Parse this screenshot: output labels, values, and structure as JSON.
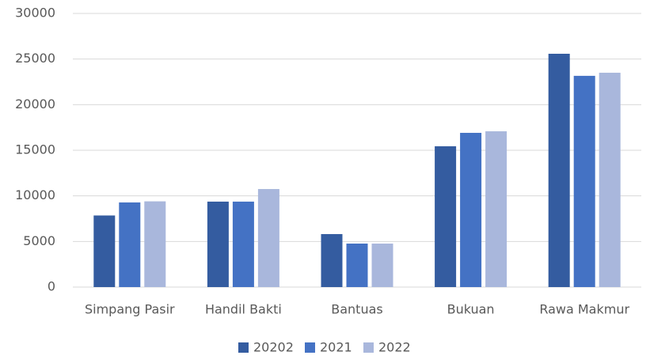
{
  "chart_data": {
    "type": "bar",
    "categories": [
      "Simpang Pasir",
      "Handil Bakti",
      "Bantuas",
      "Bukuan",
      "Rawa Makmur"
    ],
    "series": [
      {
        "name": "20202",
        "color": "#345ca0",
        "values": [
          7850,
          9370,
          5810,
          15440,
          25580
        ]
      },
      {
        "name": "2021",
        "color": "#4472c4",
        "values": [
          9280,
          9370,
          4770,
          16910,
          23160
        ]
      },
      {
        "name": "2022",
        "color": "#a9b7dc",
        "values": [
          9400,
          10750,
          4770,
          17080,
          23500
        ]
      }
    ],
    "ylim": [
      0,
      30000
    ],
    "yticks": [
      0,
      5000,
      10000,
      15000,
      20000,
      25000,
      30000
    ],
    "grid": true,
    "legend": "bottom"
  }
}
